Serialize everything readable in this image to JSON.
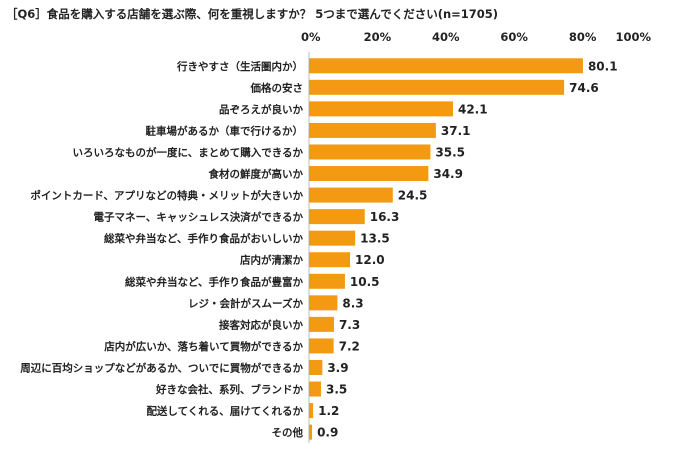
{
  "chart_data": {
    "type": "bar",
    "orientation": "horizontal",
    "title": "［Q6］食品を購入する店舗を選ぶ際、何を重視しますか？ 5つまで選んでください(n=1705)",
    "bar_color": "#F39A12",
    "xlim": [
      0,
      100
    ],
    "x_ticks": [
      "0%",
      "20%",
      "40%",
      "60%",
      "80%",
      "100%"
    ],
    "categories": [
      "行きやすさ（生活圏内か）",
      "価格の安さ",
      "品ぞろえが良いか",
      "駐車場があるか（車で行けるか）",
      "いろいろなものが一度に、まとめて購入できるか",
      "食材の鮮度が高いか",
      "ポイントカード、アプリなどの特典・メリットが大きいか",
      "電子マネー、キャッシュレス決済ができるか",
      "総菜や弁当など、手作り食品がおいしいか",
      "店内が清潔か",
      "総菜や弁当など、手作り食品が豊富か",
      "レジ・会計がスムーズか",
      "接客対応が良いか",
      "店内が広いか、落ち着いて買物ができるか",
      "周辺に百均ショップなどがあるか、ついでに買物ができるか",
      "好きな会社、系列、ブランドか",
      "配送してくれる、届けてくれるか",
      "その他"
    ],
    "values": [
      80.1,
      74.6,
      42.1,
      37.1,
      35.5,
      34.9,
      24.5,
      16.3,
      13.5,
      12.0,
      10.5,
      8.3,
      7.3,
      7.2,
      3.9,
      3.5,
      1.2,
      0.9
    ],
    "value_labels": [
      "80.1",
      "74.6",
      "42.1",
      "37.1",
      "35.5",
      "34.9",
      "24.5",
      "16.3",
      "13.5",
      "12.0",
      "10.5",
      "8.3",
      "7.3",
      "7.2",
      "3.9",
      "3.5",
      "1.2",
      "0.9"
    ],
    "grid": false,
    "legend": "none"
  }
}
